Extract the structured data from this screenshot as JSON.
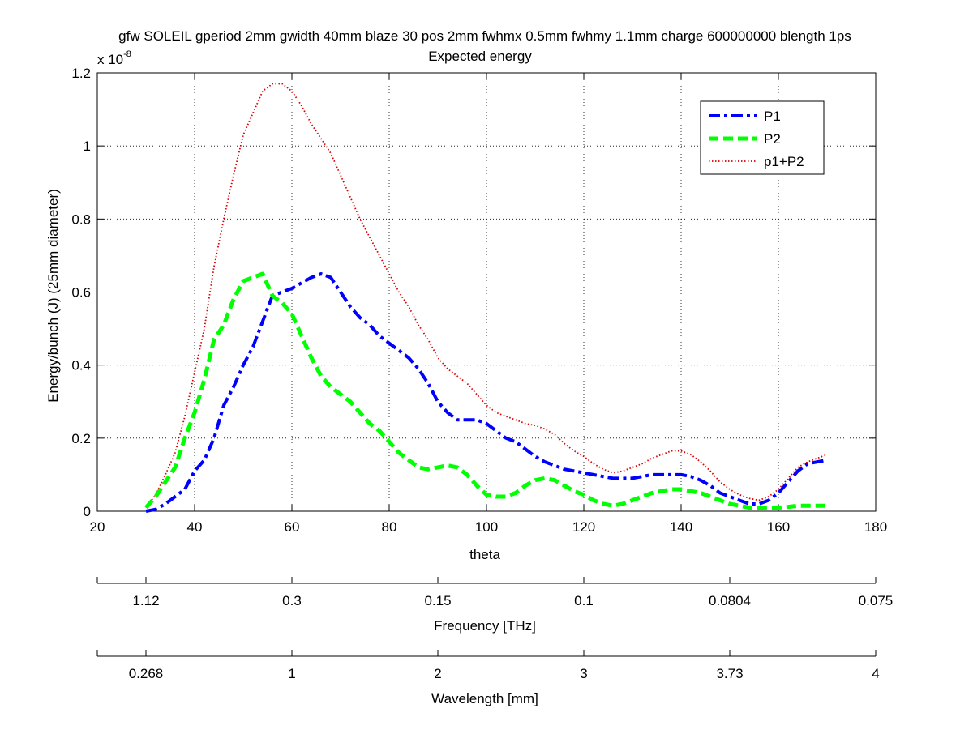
{
  "figure": {
    "title_line1": "gfw SOLEIL gperiod 2mm gwidth 40mm blaze 30 pos 2mm fwhmx 0.5mm fwhmy 1.1mm charge 600000000 blength 1ps",
    "title_line2": "Expected energy"
  },
  "chart_data": {
    "type": "line",
    "title": "gfw SOLEIL gperiod 2mm gwidth 40mm blaze 30 pos 2mm fwhmx 0.5mm fwhmy 1.1mm charge 600000000 blength 1ps",
    "subtitle": "Expected energy",
    "xlabel": "theta",
    "ylabel": "Energy/bunch (J) (25mm diameter)",
    "y_multiplier": "x 10",
    "y_multiplier_exp": "-8",
    "xlim": [
      20,
      180
    ],
    "ylim": [
      0,
      1.2
    ],
    "xticks": [
      20,
      40,
      60,
      80,
      100,
      120,
      140,
      160,
      180
    ],
    "yticks": [
      0,
      0.2,
      0.4,
      0.6,
      0.8,
      1,
      1.2
    ],
    "ytick_labels": [
      "0",
      "0.2",
      "0.4",
      "0.6",
      "0.8",
      "1",
      "1.2"
    ],
    "grid": true,
    "legend_position": "top-right",
    "series": [
      {
        "name": "P1",
        "color": "#0000ff",
        "style": "dash-dot",
        "x": [
          30,
          32,
          34,
          36,
          38,
          40,
          42,
          44,
          46,
          48,
          50,
          52,
          54,
          56,
          58,
          60,
          62,
          64,
          66,
          68,
          70,
          72,
          74,
          76,
          78,
          80,
          82,
          84,
          86,
          88,
          90,
          92,
          94,
          96,
          98,
          100,
          102,
          104,
          106,
          108,
          110,
          112,
          114,
          116,
          118,
          120,
          122,
          124,
          126,
          128,
          130,
          132,
          134,
          136,
          138,
          140,
          142,
          144,
          146,
          148,
          150,
          152,
          154,
          156,
          158,
          160,
          162,
          164,
          166,
          168,
          170
        ],
        "y": [
          0.0,
          0.005,
          0.02,
          0.04,
          0.06,
          0.11,
          0.14,
          0.2,
          0.29,
          0.34,
          0.4,
          0.45,
          0.52,
          0.59,
          0.6,
          0.61,
          0.625,
          0.64,
          0.65,
          0.64,
          0.6,
          0.56,
          0.53,
          0.51,
          0.48,
          0.46,
          0.44,
          0.42,
          0.39,
          0.35,
          0.3,
          0.27,
          0.25,
          0.25,
          0.25,
          0.24,
          0.22,
          0.2,
          0.19,
          0.17,
          0.15,
          0.135,
          0.125,
          0.115,
          0.11,
          0.105,
          0.1,
          0.095,
          0.09,
          0.09,
          0.09,
          0.095,
          0.1,
          0.1,
          0.1,
          0.1,
          0.095,
          0.085,
          0.07,
          0.05,
          0.04,
          0.03,
          0.02,
          0.02,
          0.03,
          0.05,
          0.08,
          0.11,
          0.13,
          0.135,
          0.14
        ]
      },
      {
        "name": "P2",
        "color": "#00ff00",
        "style": "dashed",
        "x": [
          30,
          32,
          34,
          36,
          38,
          40,
          42,
          44,
          46,
          48,
          50,
          52,
          54,
          56,
          58,
          60,
          62,
          64,
          66,
          68,
          70,
          72,
          74,
          76,
          78,
          80,
          82,
          84,
          86,
          88,
          90,
          92,
          94,
          96,
          98,
          100,
          102,
          104,
          106,
          108,
          110,
          112,
          114,
          116,
          118,
          120,
          122,
          124,
          126,
          128,
          130,
          132,
          134,
          136,
          138,
          140,
          142,
          144,
          146,
          148,
          150,
          152,
          154,
          156,
          158,
          160,
          162,
          164,
          166,
          168,
          170
        ],
        "y": [
          0.01,
          0.04,
          0.08,
          0.12,
          0.2,
          0.27,
          0.36,
          0.47,
          0.51,
          0.58,
          0.63,
          0.64,
          0.65,
          0.59,
          0.57,
          0.54,
          0.48,
          0.42,
          0.37,
          0.34,
          0.32,
          0.3,
          0.27,
          0.24,
          0.22,
          0.19,
          0.16,
          0.14,
          0.12,
          0.115,
          0.12,
          0.125,
          0.12,
          0.1,
          0.07,
          0.045,
          0.04,
          0.04,
          0.05,
          0.07,
          0.085,
          0.09,
          0.085,
          0.07,
          0.055,
          0.045,
          0.03,
          0.02,
          0.015,
          0.02,
          0.03,
          0.04,
          0.05,
          0.055,
          0.06,
          0.06,
          0.055,
          0.05,
          0.04,
          0.03,
          0.02,
          0.015,
          0.01,
          0.01,
          0.01,
          0.01,
          0.012,
          0.015,
          0.015,
          0.015,
          0.015
        ]
      },
      {
        "name": "p1+P2",
        "color": "#dd0000",
        "style": "dotted",
        "x": [
          30,
          32,
          34,
          36,
          38,
          40,
          42,
          44,
          46,
          48,
          50,
          52,
          54,
          56,
          58,
          60,
          62,
          64,
          66,
          68,
          70,
          72,
          74,
          76,
          78,
          80,
          82,
          84,
          86,
          88,
          90,
          92,
          94,
          96,
          98,
          100,
          102,
          104,
          106,
          108,
          110,
          112,
          114,
          116,
          118,
          120,
          122,
          124,
          126,
          128,
          130,
          132,
          134,
          136,
          138,
          140,
          142,
          144,
          146,
          148,
          150,
          152,
          154,
          156,
          158,
          160,
          162,
          164,
          166,
          168,
          170
        ],
        "y": [
          0.01,
          0.045,
          0.1,
          0.16,
          0.26,
          0.38,
          0.5,
          0.67,
          0.8,
          0.92,
          1.03,
          1.09,
          1.15,
          1.17,
          1.17,
          1.15,
          1.11,
          1.06,
          1.02,
          0.98,
          0.92,
          0.86,
          0.8,
          0.75,
          0.7,
          0.65,
          0.6,
          0.56,
          0.51,
          0.47,
          0.42,
          0.39,
          0.37,
          0.35,
          0.32,
          0.29,
          0.27,
          0.26,
          0.25,
          0.24,
          0.235,
          0.225,
          0.21,
          0.185,
          0.165,
          0.15,
          0.13,
          0.115,
          0.105,
          0.11,
          0.12,
          0.13,
          0.145,
          0.155,
          0.165,
          0.165,
          0.155,
          0.135,
          0.11,
          0.08,
          0.06,
          0.045,
          0.035,
          0.03,
          0.04,
          0.06,
          0.09,
          0.12,
          0.135,
          0.145,
          0.155
        ]
      }
    ],
    "secondary_axes": [
      {
        "label": "Frequency [THz]",
        "tick_theta": [
          30,
          60,
          90,
          120,
          150,
          180
        ],
        "tick_labels": [
          "1.12",
          "0.3",
          "0.15",
          "0.1",
          "0.0804",
          "0.075"
        ]
      },
      {
        "label": "Wavelength [mm]",
        "tick_theta": [
          30,
          60,
          90,
          120,
          150,
          180
        ],
        "tick_labels": [
          "0.268",
          "1",
          "2",
          "3",
          "3.73",
          "4"
        ]
      }
    ]
  }
}
